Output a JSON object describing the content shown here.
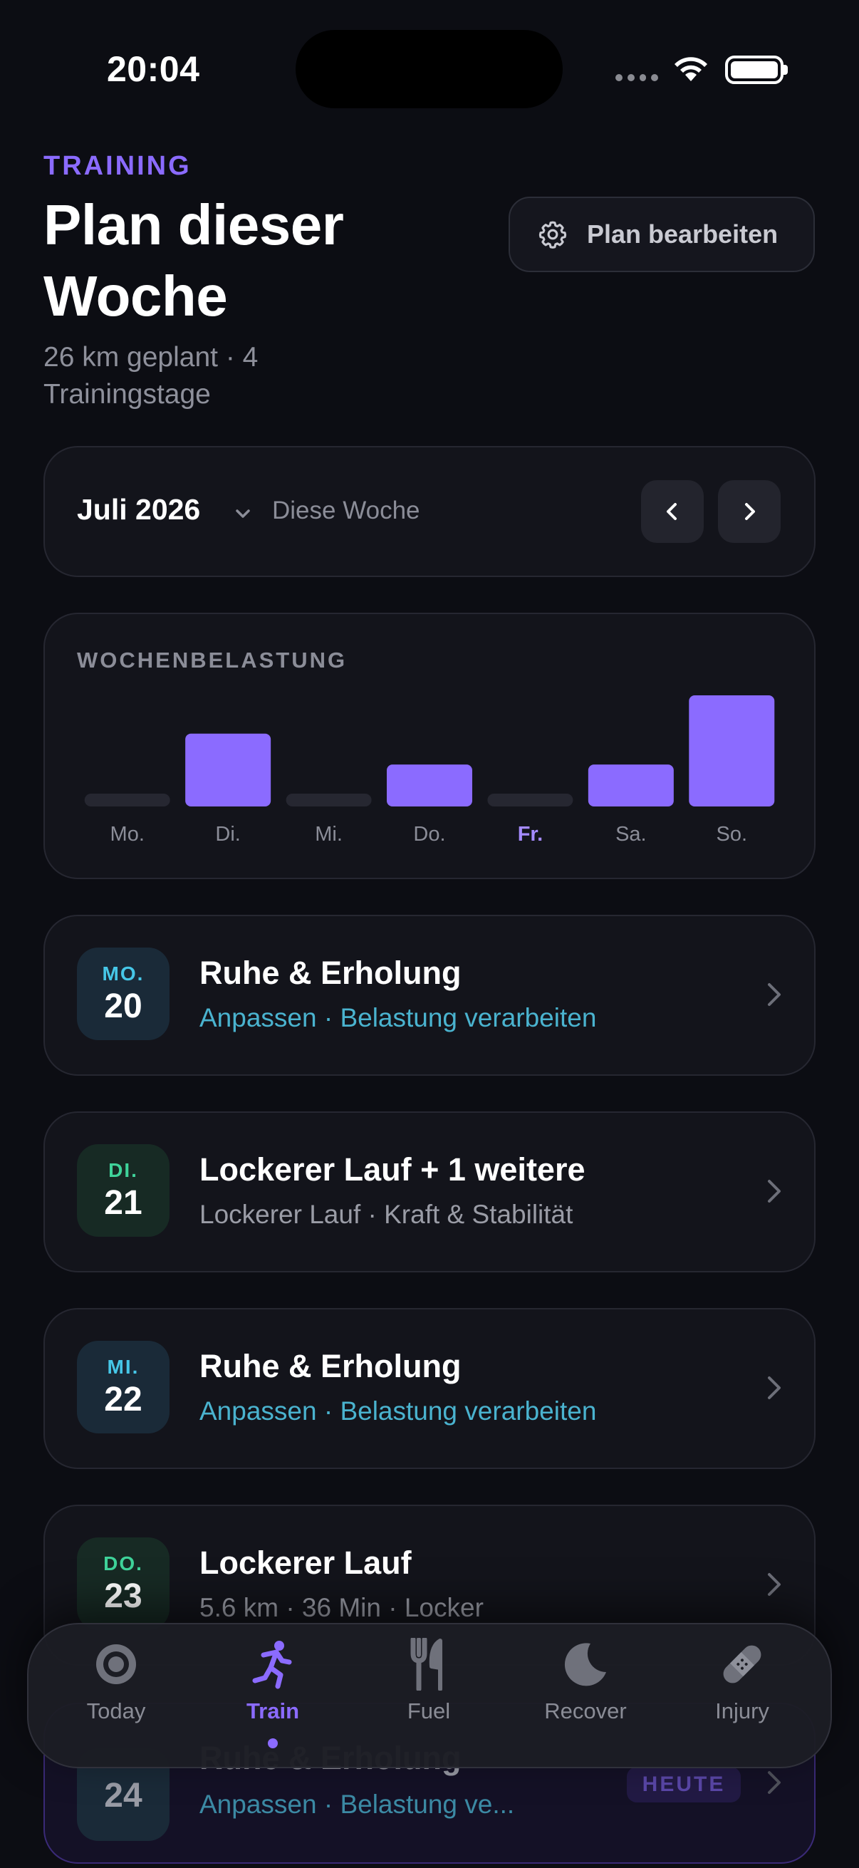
{
  "status_bar": {
    "time": "20:04"
  },
  "header": {
    "eyebrow": "TRAINING",
    "title": "Plan dieser Woche",
    "subtitle": "26 km geplant · 4 Trainingstage",
    "edit_button": "Plan bearbeiten",
    "edit_icon": "gear-icon"
  },
  "month_selector": {
    "month": "Juli 2026",
    "week": "Diese Woche",
    "prev_icon": "chevron-left-icon",
    "next_icon": "chevron-right-icon"
  },
  "weekly_load": {
    "title": "WOCHENBELASTUNG",
    "highlight_day": "Fr.",
    "accent_color": "#8b6bff",
    "chart_data": {
      "type": "bar",
      "categories": [
        "Mo.",
        "Di.",
        "Mi.",
        "Do.",
        "Fr.",
        "Sa.",
        "So."
      ],
      "values": [
        0,
        4,
        0,
        2.3,
        0,
        2.3,
        6.1
      ],
      "ylim": [
        0,
        6.1
      ],
      "grid": false,
      "title": ""
    }
  },
  "days": [
    {
      "dow": "MO.",
      "num": "20",
      "title": "Ruhe & Erholung",
      "subtitle": "Anpassen · Belastung verarbeiten",
      "subtitle_style": "accent",
      "badge": "blue"
    },
    {
      "dow": "DI.",
      "num": "21",
      "title": "Lockerer Lauf + 1 weitere",
      "subtitle": "Lockerer Lauf · Kraft & Stabilität",
      "subtitle_style": "muted",
      "badge": "green"
    },
    {
      "dow": "MI.",
      "num": "22",
      "title": "Ruhe & Erholung",
      "subtitle": "Anpassen · Belastung verarbeiten",
      "subtitle_style": "accent",
      "badge": "blue"
    },
    {
      "dow": "DO.",
      "num": "23",
      "title": "Lockerer Lauf",
      "subtitle": "5.6 km · 36 Min · Locker",
      "subtitle_style": "muted",
      "badge": "green"
    }
  ],
  "today_card": {
    "num": "24",
    "title": "Ruhe & Erholung",
    "subtitle": "Anpassen · Belastung ve...",
    "pill": "HEUTE"
  },
  "tabs": [
    {
      "label": "Today",
      "icon": "target-icon",
      "active": false
    },
    {
      "label": "Train",
      "icon": "running-icon",
      "active": true
    },
    {
      "label": "Fuel",
      "icon": "fork-knife-icon",
      "active": false
    },
    {
      "label": "Recover",
      "icon": "moon-icon",
      "active": false
    },
    {
      "label": "Injury",
      "icon": "bandage-icon",
      "active": false
    }
  ]
}
